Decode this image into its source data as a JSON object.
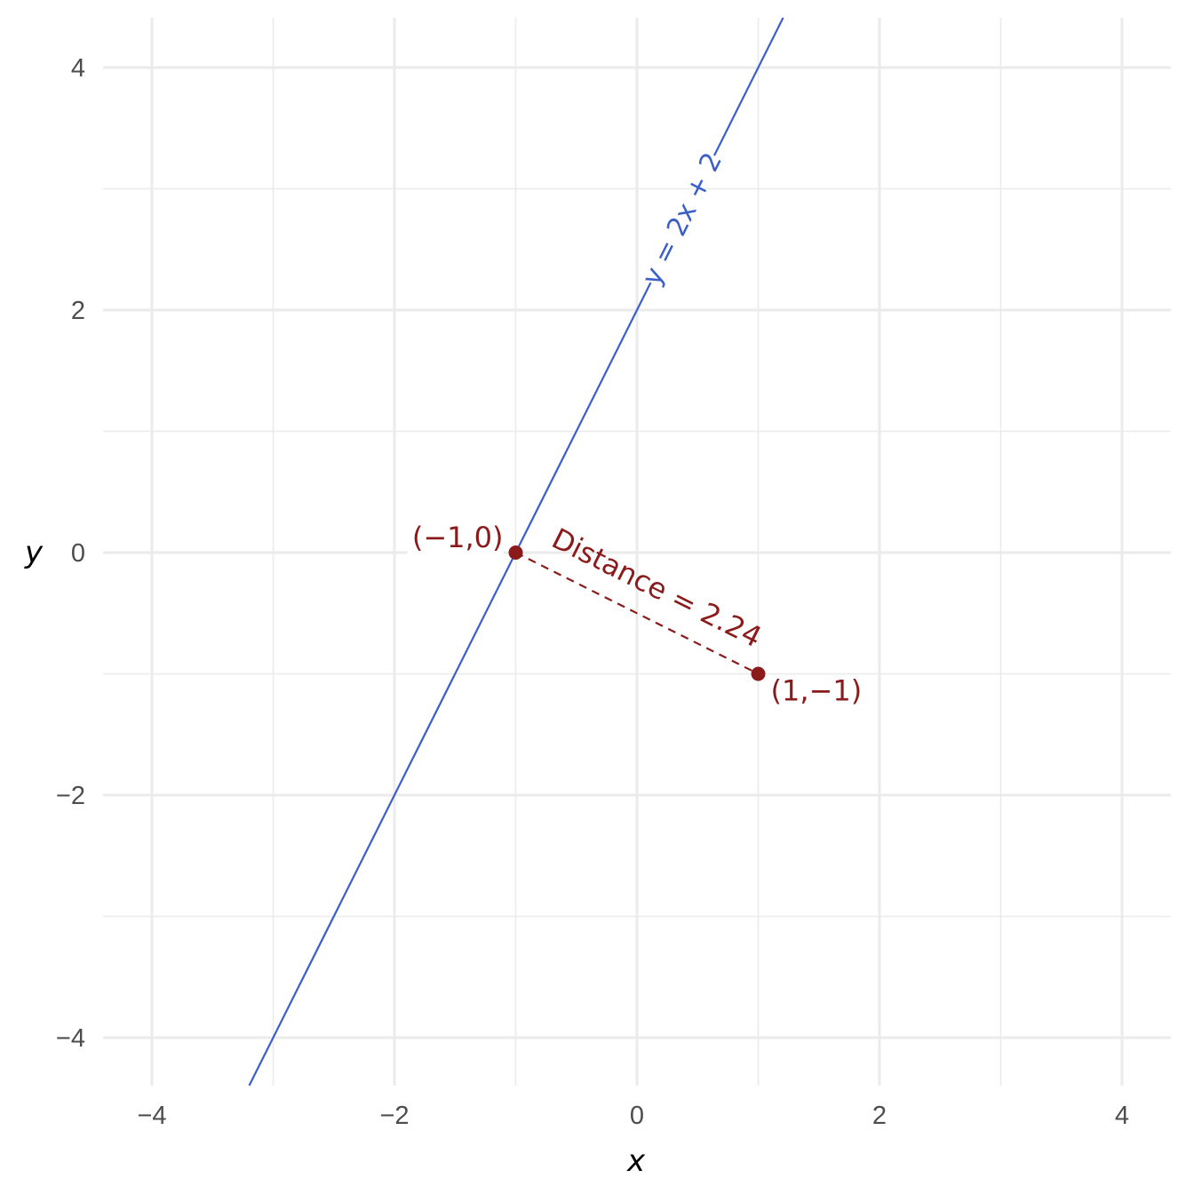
{
  "chart_data": {
    "type": "line",
    "title": "",
    "xlabel": "x",
    "ylabel": "y",
    "xlim": [
      -4.2,
      4.4
    ],
    "ylim": [
      -4.4,
      4.4
    ],
    "x_ticks": [
      -4,
      -2,
      0,
      2,
      4
    ],
    "y_ticks": [
      -4,
      -2,
      0,
      2,
      4
    ],
    "x_tick_labels": [
      "−4",
      "−2",
      "0",
      "2",
      "4"
    ],
    "y_tick_labels": [
      "−4",
      "−2",
      "0",
      "2",
      "4"
    ],
    "grid": true,
    "line": {
      "label": "y = 2x + 2",
      "slope": 2,
      "intercept": 2,
      "color": "#3b5fc8",
      "label_at_x": 0.375
    },
    "points": [
      {
        "x": -1,
        "y": 0,
        "label": "(−1,0)",
        "color": "#8b1a1a"
      },
      {
        "x": 1,
        "y": -1,
        "label": "(1,−1)",
        "color": "#8b1a1a"
      }
    ],
    "segment": {
      "from": [
        -1,
        0
      ],
      "to": [
        1,
        -1
      ],
      "style": "dashed",
      "label": "Distance = 2.24",
      "color": "#8b1a1a"
    }
  }
}
